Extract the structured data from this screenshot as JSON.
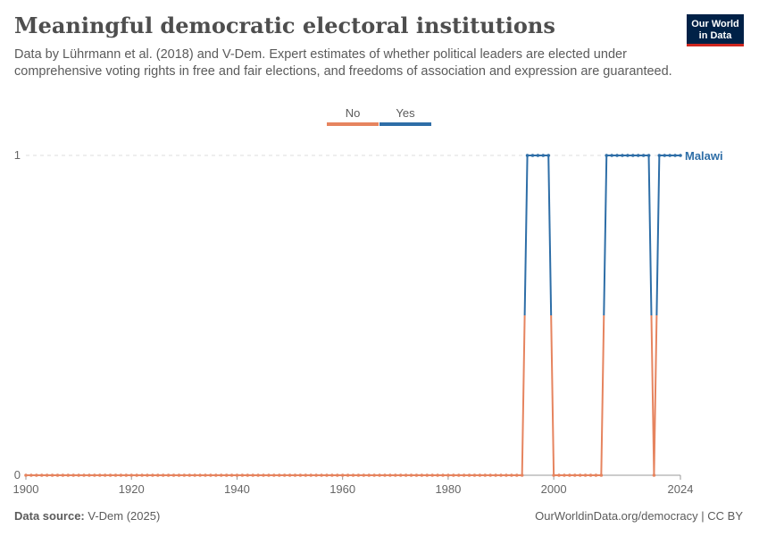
{
  "header": {
    "title": "Meaningful democratic electoral institutions",
    "subtitle": "Data by Lührmann et al. (2018) and V-Dem. Expert estimates of whether political leaders are elected under comprehensive voting rights in free and fair elections, and freedoms of association and expression are guaranteed."
  },
  "logo": {
    "line1": "Our World",
    "line2": "in Data"
  },
  "legend": {
    "items": [
      {
        "label": "No",
        "color": "#e6845f"
      },
      {
        "label": "Yes",
        "color": "#2e6ea7"
      }
    ]
  },
  "footer": {
    "source_label": "Data source:",
    "source_value": "V-Dem (2025)",
    "link": "OurWorldinData.org/democracy | CC BY"
  },
  "chart_data": {
    "type": "line",
    "xlabel": "",
    "ylabel": "",
    "xlim": [
      1900,
      2024
    ],
    "ylim": [
      0,
      1
    ],
    "x_ticks": [
      1900,
      1920,
      1940,
      1960,
      1980,
      2000,
      2024
    ],
    "y_ticks": [
      0,
      1
    ],
    "grid": true,
    "series": [
      {
        "name": "Malawi",
        "color_no": "#e6845f",
        "color_yes": "#2e6ea7",
        "yes_periods": [
          [
            1995,
            1999
          ],
          [
            2010,
            2018
          ],
          [
            2020,
            2024
          ]
        ],
        "x_start": 1900,
        "x_end": 2024
      }
    ]
  }
}
